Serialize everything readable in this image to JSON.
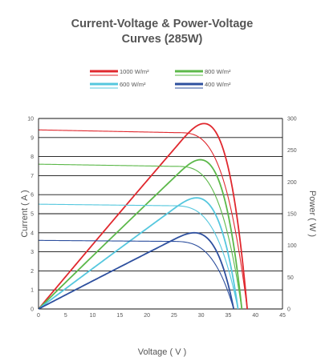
{
  "chart_data": {
    "type": "line",
    "title_lines": [
      "Current-Voltage & Power-Voltage",
      "Curves (285W)"
    ],
    "xlabel": "Voltage ( V )",
    "ylabel_left": "Current ( A )",
    "ylabel_right": "Power ( W )",
    "xlim": [
      0,
      45
    ],
    "ylim_left": [
      0,
      10
    ],
    "ylim_right": [
      0,
      300
    ],
    "x_ticks": [
      0,
      5,
      10,
      15,
      20,
      25,
      30,
      35,
      40,
      45
    ],
    "y_left_ticks": [
      0,
      1,
      2,
      3,
      4,
      5,
      6,
      7,
      8,
      9,
      10
    ],
    "y_right_ticks": [
      0,
      50,
      100,
      150,
      200,
      250,
      300
    ],
    "grid": "horizontal",
    "legend_position": "top",
    "series": [
      {
        "name": "1000 W/m²",
        "color": "#e0282e",
        "isc": 9.4,
        "voc": 38.5,
        "vmp": 31.0,
        "pmax": 292
      },
      {
        "name": "800 W/m²",
        "color": "#5cb84a",
        "isc": 7.6,
        "voc": 37.5,
        "vmp": 30.5,
        "pmax": 235
      },
      {
        "name": "600 W/m²",
        "color": "#55c7de",
        "isc": 5.5,
        "voc": 36.8,
        "vmp": 29.5,
        "pmax": 175
      },
      {
        "name": "400 W/m²",
        "color": "#2d4f9e",
        "isc": 3.6,
        "voc": 36.0,
        "vmp": 29.5,
        "pmax": 120
      }
    ]
  }
}
